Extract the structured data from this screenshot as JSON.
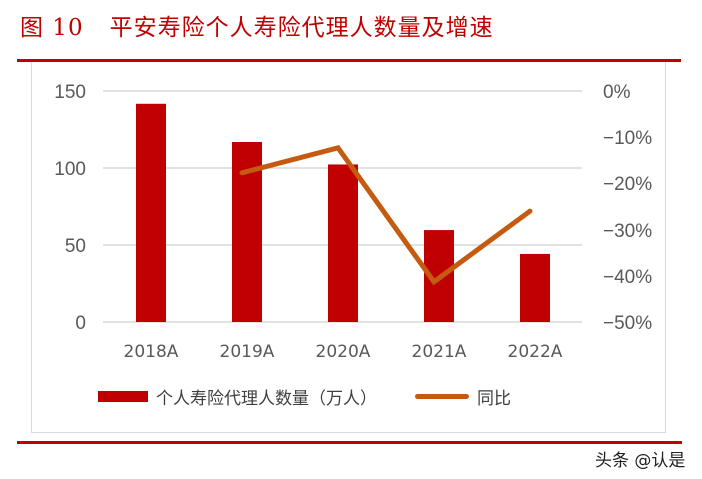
{
  "header": {
    "figure_number": "图 10",
    "title": "平安寿险个人寿险代理人数量及增速"
  },
  "chart_data": {
    "type": "bar+line",
    "title": "平安寿险个人寿险代理人数量及增速",
    "categories": [
      "2018A",
      "2019A",
      "2020A",
      "2021A",
      "2022A"
    ],
    "series": [
      {
        "name": "个人寿险代理人数量（万人）",
        "type": "bar",
        "axis": "left",
        "color": "#c00000",
        "values": [
          141.7,
          116.9,
          102.3,
          59.7,
          44.2
        ]
      },
      {
        "name": "同比",
        "type": "line",
        "axis": "right",
        "color": "#c55a11",
        "values": [
          null,
          -17.7,
          -12.3,
          -41.3,
          -26.0
        ]
      }
    ],
    "left_axis": {
      "ylim": [
        0,
        150
      ],
      "ticks": [
        "0",
        "50",
        "100",
        "150"
      ]
    },
    "right_axis": {
      "ylim": [
        -50,
        0
      ],
      "ticks": [
        "0%",
        "-10%",
        "-20%",
        "-30%",
        "-40%",
        "-50%"
      ]
    },
    "grid": true,
    "legend_position": "bottom"
  },
  "axes": {
    "left_ticks": [
      "150",
      "100",
      "50",
      "0"
    ],
    "right_ticks": [
      "0%",
      "−10%",
      "−20%",
      "−30%",
      "−40%",
      "−50%"
    ],
    "x_ticks": [
      "2018A",
      "2019A",
      "2020A",
      "2021A",
      "2022A"
    ]
  },
  "legend": {
    "bar_label": "个人寿险代理人数量（万人）",
    "line_label": "同比"
  },
  "colors": {
    "accent_red": "#c00000",
    "line_orange": "#c55a11",
    "grid": "#d9d9d9",
    "tick_text": "#595959"
  },
  "watermark": "头条 @认是"
}
